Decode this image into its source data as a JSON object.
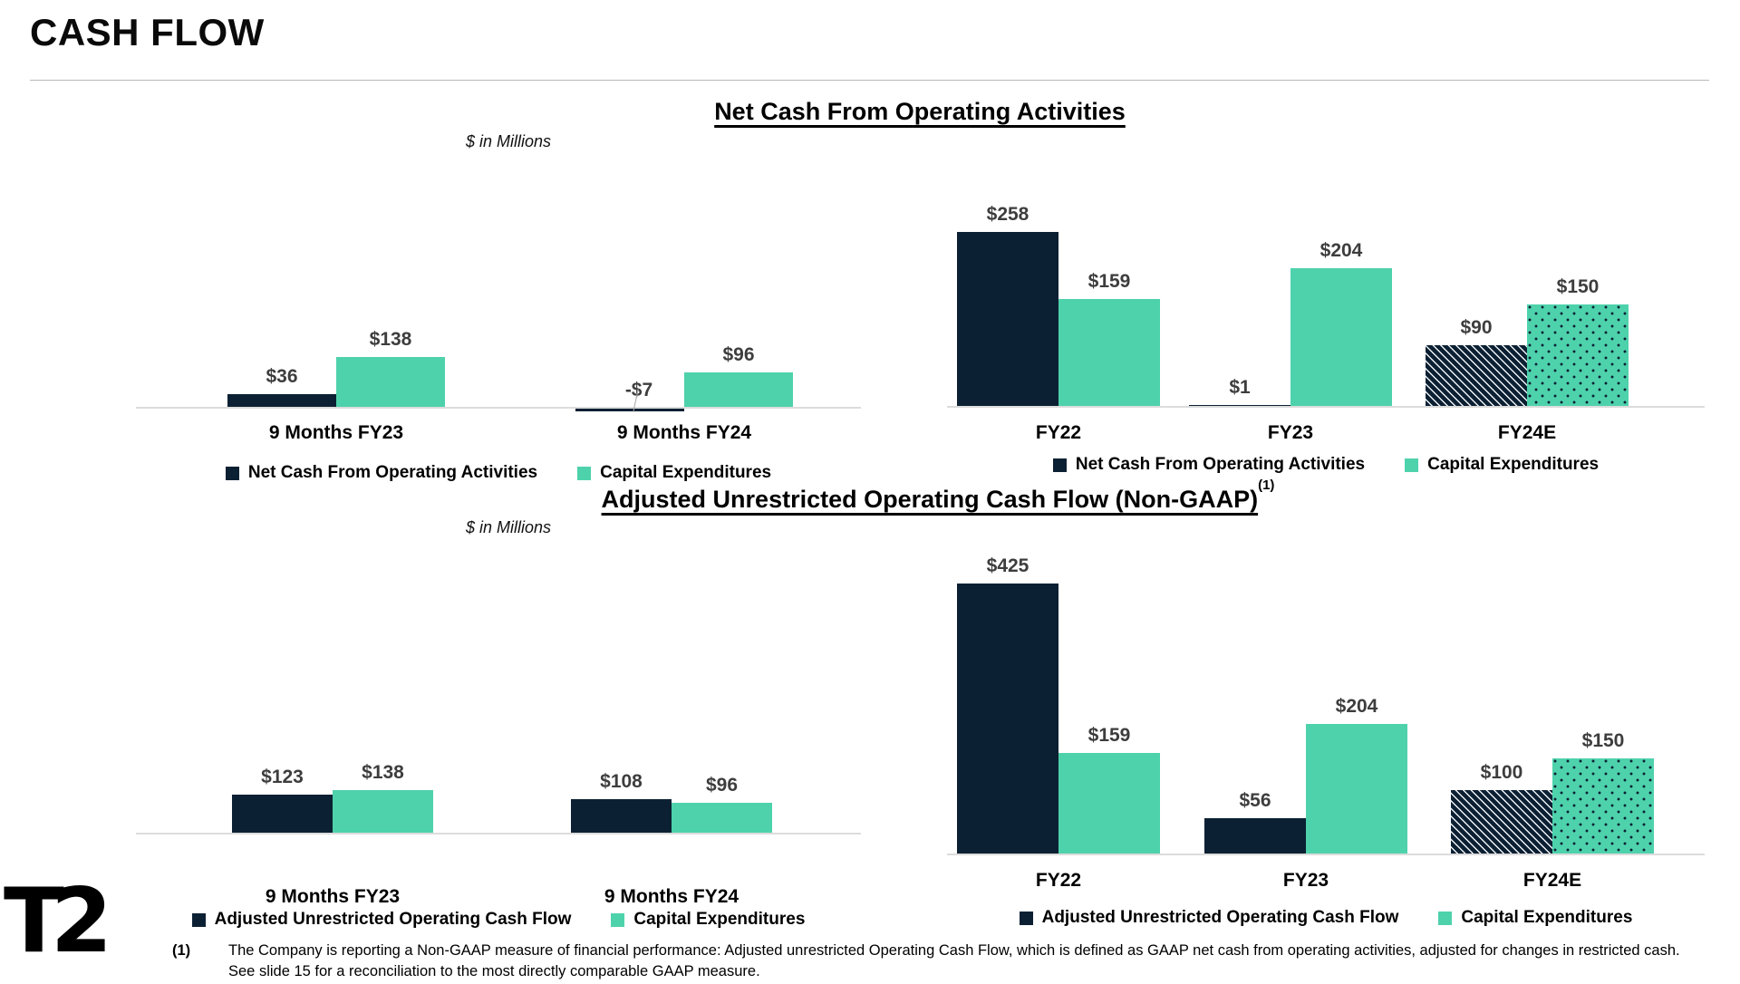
{
  "page": {
    "title": "CASH FLOW"
  },
  "sections": [
    {
      "title": "Net Cash From Operating Activities",
      "superscript": "",
      "units_label": "$ in Millions"
    },
    {
      "title": "Adjusted Unrestricted Operating Cash Flow (Non-GAAP)",
      "superscript": "(1)",
      "units_label": "$ in Millions"
    }
  ],
  "colors": {
    "navy": "#0c2033",
    "teal": "#4ed2ac",
    "value_label_gray": "#3d3d3d",
    "axis_line": "#dcdcdc"
  },
  "chart_data": [
    {
      "type": "bar",
      "title": "Net Cash From Operating Activities (9 month periods)",
      "units": "$ in Millions",
      "categories": [
        "9 Months FY23",
        "9 Months FY24"
      ],
      "series": [
        {
          "name": "Net Cash From Operating Activities",
          "values": [
            36,
            -7
          ]
        },
        {
          "name": "Capital Expenditures",
          "values": [
            138,
            96
          ]
        }
      ],
      "data_labels": [
        [
          "$36",
          "-$7"
        ],
        [
          "$138",
          "$96"
        ]
      ],
      "legend": [
        "Net Cash From Operating Activities",
        "Capital Expenditures"
      ],
      "legend_position": "bottom",
      "estimate_category": null,
      "grid": false,
      "axes": "hidden, data labels shown above bars"
    },
    {
      "type": "bar",
      "title": "Net Cash From Operating Activities (fiscal years)",
      "units": "$ in Millions",
      "categories": [
        "FY22",
        "FY23",
        "FY24E"
      ],
      "series": [
        {
          "name": "Net Cash From Operating Activities",
          "values": [
            258,
            1,
            90
          ]
        },
        {
          "name": "Capital Expenditures",
          "values": [
            159,
            204,
            150
          ]
        }
      ],
      "data_labels": [
        [
          "$258",
          "$1",
          "$90"
        ],
        [
          "$159",
          "$204",
          "$150"
        ]
      ],
      "legend": [
        "Net Cash From Operating Activities",
        "Capital Expenditures"
      ],
      "legend_position": "bottom",
      "estimate_category": "FY24E",
      "grid": false,
      "axes": "hidden, data labels shown above bars"
    },
    {
      "type": "bar",
      "title": "Adjusted Unrestricted Operating Cash Flow (Non-GAAP) (9 month periods)",
      "units": "$ in Millions",
      "categories": [
        "9 Months FY23",
        "9 Months FY24"
      ],
      "series": [
        {
          "name": "Adjusted Unrestricted Operating Cash Flow",
          "values": [
            123,
            108
          ]
        },
        {
          "name": "Capital Expenditures",
          "values": [
            138,
            96
          ]
        }
      ],
      "data_labels": [
        [
          "$123",
          "$108"
        ],
        [
          "$138",
          "$96"
        ]
      ],
      "legend": [
        "Adjusted Unrestricted Operating Cash Flow",
        "Capital Expenditures"
      ],
      "legend_position": "bottom",
      "estimate_category": null,
      "grid": false,
      "axes": "hidden, data labels shown above bars"
    },
    {
      "type": "bar",
      "title": "Adjusted Unrestricted Operating Cash Flow (Non-GAAP) (fiscal years)",
      "units": "$ in Millions",
      "categories": [
        "FY22",
        "FY23",
        "FY24E"
      ],
      "series": [
        {
          "name": "Adjusted Unrestricted Operating Cash Flow",
          "values": [
            425,
            56,
            100
          ]
        },
        {
          "name": "Capital Expenditures",
          "values": [
            159,
            204,
            150
          ]
        }
      ],
      "data_labels": [
        [
          "$425",
          "$56",
          "$100"
        ],
        [
          "$159",
          "$204",
          "$150"
        ]
      ],
      "legend": [
        "Adjusted Unrestricted Operating Cash Flow",
        "Capital Expenditures"
      ],
      "legend_position": "bottom",
      "estimate_category": "FY24E",
      "grid": false,
      "axes": "hidden, data labels shown above bars"
    }
  ],
  "footnote": {
    "marker": "(1)",
    "text": "The Company is reporting a Non-GAAP measure of financial performance: Adjusted unrestricted Operating Cash Flow, which is defined as GAAP net cash from operating activities, adjusted for changes in restricted cash.  See slide 15 for a reconciliation to the most directly comparable GAAP measure."
  },
  "logo": {
    "text": "T2"
  }
}
